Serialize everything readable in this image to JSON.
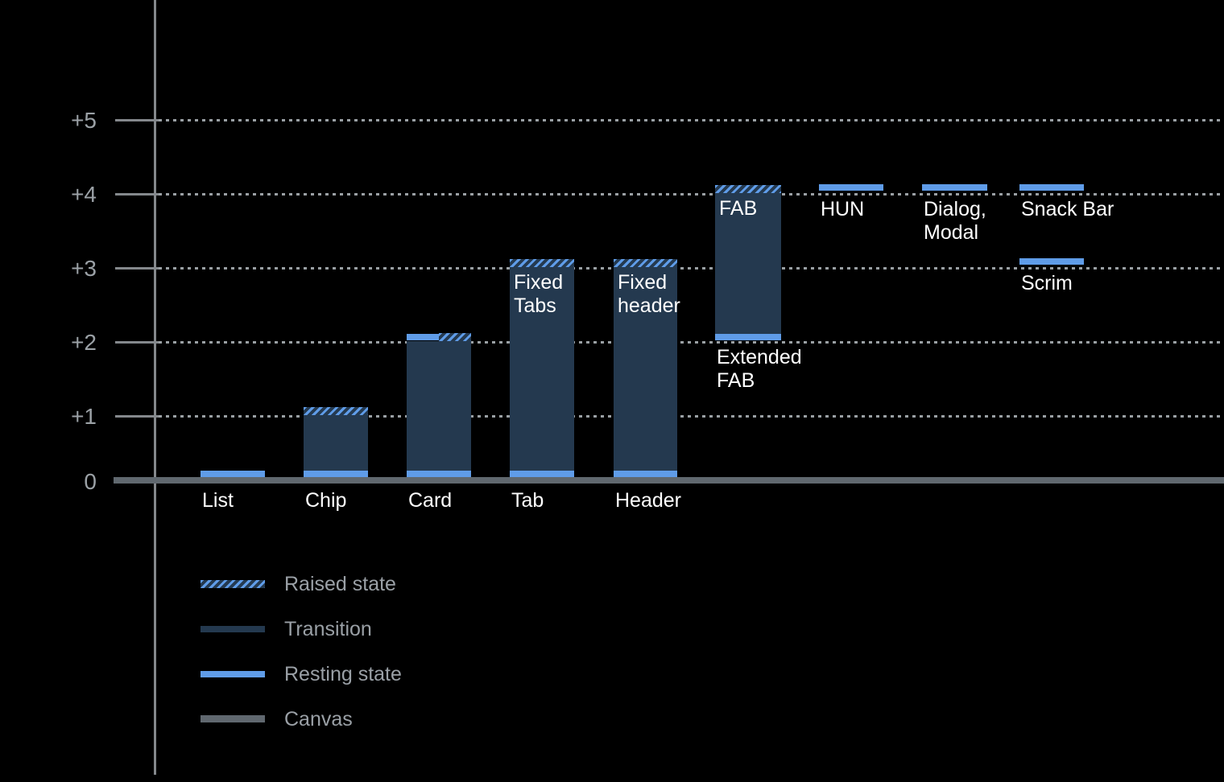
{
  "colors": {
    "background": "#000000",
    "resting_blue": "#5f9ce8",
    "transition_navy": "#24394f",
    "canvas_gray": "#60686f",
    "axis_gray": "#84888c",
    "grid_dot_gray": "#9aa0a4",
    "axis_label_gray": "#9ba1a6",
    "component_label_white": "#ffffff",
    "legend_text_gray": "#9aa0a6"
  },
  "chart_data": {
    "type": "bar",
    "title": "",
    "y_axis": {
      "tick_labels": [
        "0",
        "+1",
        "+2",
        "+3",
        "+4",
        "+5"
      ],
      "ylim": [
        0,
        5
      ],
      "gridlines": "dotted horizontal lines at +1 through +5, solid canvas baseline at 0"
    },
    "legend": {
      "position": "bottom-left",
      "items": [
        {
          "label": "Raised state",
          "swatch": "raised"
        },
        {
          "label": "Transition",
          "swatch": "transition"
        },
        {
          "label": "Resting state",
          "swatch": "resting"
        },
        {
          "label": "Canvas",
          "swatch": "canvas"
        }
      ]
    },
    "components": [
      {
        "id": "list",
        "axis_label": "List",
        "resting_elevation": 0,
        "segments": [
          {
            "kind": "resting",
            "elev": 0
          }
        ]
      },
      {
        "id": "chip",
        "axis_label": "Chip",
        "resting_elevation": 0,
        "raised_elevation": 1,
        "segments": [
          {
            "kind": "raised",
            "elev": 1
          },
          {
            "kind": "transition",
            "from": 0,
            "to": 1
          },
          {
            "kind": "resting",
            "elev": 0
          }
        ]
      },
      {
        "id": "card",
        "axis_label": "Card",
        "resting_elevation": 0,
        "raised_elevation": 2,
        "segments": [
          {
            "kind": "resting_raised",
            "elev": 2
          },
          {
            "kind": "resting_raised",
            "elev": 1
          },
          {
            "kind": "transition",
            "from": 0,
            "to": 2
          },
          {
            "kind": "resting",
            "elev": 0
          }
        ]
      },
      {
        "id": "tab",
        "axis_label": "Tab",
        "inner_label": [
          "Fixed",
          "Tabs"
        ],
        "resting_elevation": 0,
        "raised_elevation": 3,
        "segments": [
          {
            "kind": "raised",
            "elev": 3
          },
          {
            "kind": "transition",
            "from": 0,
            "to": 3
          },
          {
            "kind": "resting",
            "elev": 0
          }
        ]
      },
      {
        "id": "header",
        "axis_label": "Header",
        "inner_label": [
          "Fixed",
          "header"
        ],
        "resting_elevation": 0,
        "raised_elevation": 3,
        "segments": [
          {
            "kind": "raised",
            "elev": 3
          },
          {
            "kind": "transition",
            "from": 0,
            "to": 3
          },
          {
            "kind": "resting",
            "elev": 0
          }
        ]
      },
      {
        "id": "fab",
        "inner_label": [
          "FAB"
        ],
        "below_bar_label": {
          "lines": [
            "Extended",
            "FAB"
          ],
          "elev": 2
        },
        "resting_elevation": 2,
        "raised_elevation": 4,
        "segments": [
          {
            "kind": "raised",
            "elev": 4
          },
          {
            "kind": "transition",
            "from": 2,
            "to": 4
          },
          {
            "kind": "resting",
            "elev": 2,
            "in_bar": true
          }
        ]
      },
      {
        "id": "hun",
        "below_bar_label": {
          "lines": [
            "HUN"
          ],
          "elev": 4
        },
        "resting_elevation": 4,
        "segments": [
          {
            "kind": "resting",
            "elev": 4,
            "float": true
          }
        ]
      },
      {
        "id": "dialog-modal",
        "below_bar_label": {
          "lines": [
            "Dialog,",
            "Modal"
          ],
          "elev": 4
        },
        "resting_elevation": 4,
        "segments": [
          {
            "kind": "resting",
            "elev": 4,
            "float": true
          }
        ]
      },
      {
        "id": "snack-bar",
        "below_bar_label": {
          "lines": [
            "Snack Bar"
          ],
          "elev": 4
        },
        "resting_elevation": 4,
        "segments": [
          {
            "kind": "resting",
            "elev": 4,
            "float": true
          }
        ]
      },
      {
        "id": "scrim",
        "below_bar_label": {
          "lines": [
            "Scrim"
          ],
          "elev": 3
        },
        "resting_elevation": 3,
        "segments": [
          {
            "kind": "resting",
            "elev": 3,
            "float": true
          }
        ]
      }
    ]
  }
}
